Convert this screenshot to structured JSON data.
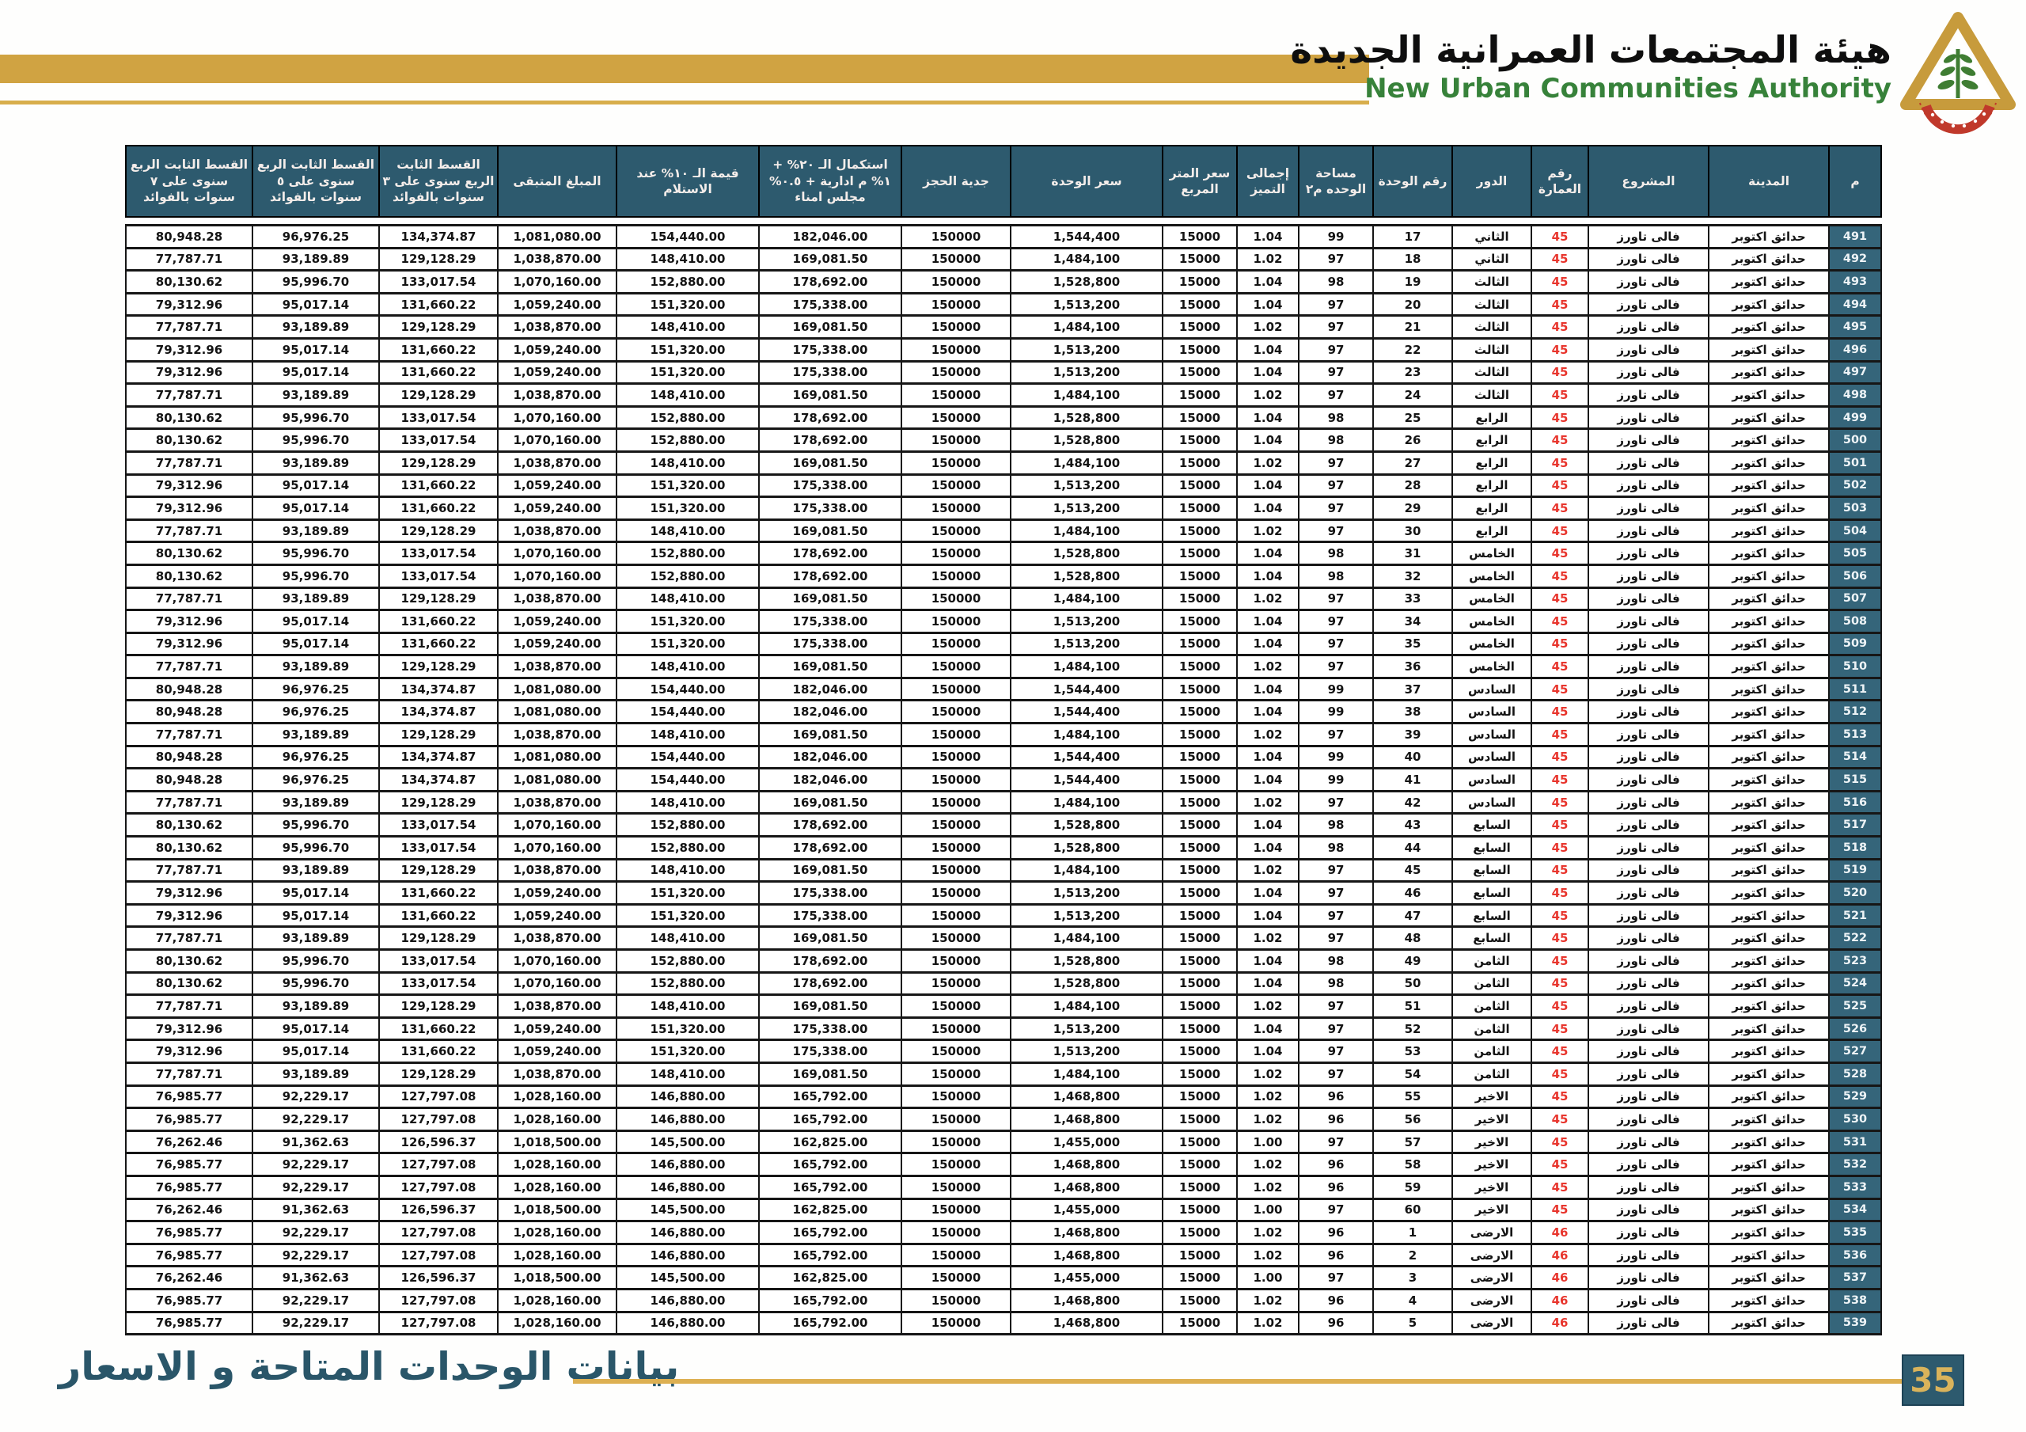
{
  "header": {
    "authority_name_ar": "هيئة المجتمعات العمرانية الجديدة",
    "authority_name_en": "New Urban Communities Authority"
  },
  "footer": {
    "title": "بيانات الوحدات المتاحة و الاسعار",
    "page_number": "35"
  },
  "colors": {
    "accent_gold": "#d0a342",
    "header_teal": "#2d5a6e",
    "building_red": "#e8352d",
    "brand_green": "#37823a",
    "page_badge_text_gold": "#d9b35b"
  },
  "icons": {
    "logo": "nuca-pyramid-logo"
  },
  "table": {
    "columns": [
      {
        "key": "serial",
        "label": "م"
      },
      {
        "key": "city",
        "label": "المدينة"
      },
      {
        "key": "project",
        "label": "المشروع"
      },
      {
        "key": "building_no",
        "label": "رقم العمارة"
      },
      {
        "key": "floor",
        "label": "الدور"
      },
      {
        "key": "unit_no",
        "label": "رقم الوحدة"
      },
      {
        "key": "area",
        "label": "مساحة الوحده م٢"
      },
      {
        "key": "premium_total",
        "label": "إجمالى التميز"
      },
      {
        "key": "price_per_sqm",
        "label": "سعر المتر المربع"
      },
      {
        "key": "unit_price",
        "label": "سعر الوحدة"
      },
      {
        "key": "reservation_deposit",
        "label": "جدية الحجز"
      },
      {
        "key": "completion_20pct",
        "label": "استكمال الـ ٢٠% + ١% م ادارية + ٠.٥% مجلس امناء"
      },
      {
        "key": "delivery_10pct",
        "label": "قيمة الـ ١٠% عند الاستلام"
      },
      {
        "key": "remaining_amount",
        "label": "المبلغ المتبقى"
      },
      {
        "key": "installment_3y",
        "label": "القسط الثابت الربع سنوى على ٣ سنوات بالفوائد"
      },
      {
        "key": "installment_5y",
        "label": "القسط الثابت الربع سنوى على ٥ سنوات بالفوائد"
      },
      {
        "key": "installment_7y",
        "label": "القسط الثابت الربع سنوى على ٧ سنوات بالفوائد"
      }
    ],
    "rows": [
      [
        "491",
        "حدائق اكتوبر",
        "فالى تاورز",
        "45",
        "الثاني",
        "17",
        "99",
        "1.04",
        "15000",
        "1,544,400",
        "150000",
        "182,046.00",
        "154,440.00",
        "1,081,080.00",
        "134,374.87",
        "96,976.25",
        "80,948.28"
      ],
      [
        "492",
        "حدائق اكتوبر",
        "فالى تاورز",
        "45",
        "الثاني",
        "18",
        "97",
        "1.02",
        "15000",
        "1,484,100",
        "150000",
        "169,081.50",
        "148,410.00",
        "1,038,870.00",
        "129,128.29",
        "93,189.89",
        "77,787.71"
      ],
      [
        "493",
        "حدائق اكتوبر",
        "فالى تاورز",
        "45",
        "الثالث",
        "19",
        "98",
        "1.04",
        "15000",
        "1,528,800",
        "150000",
        "178,692.00",
        "152,880.00",
        "1,070,160.00",
        "133,017.54",
        "95,996.70",
        "80,130.62"
      ],
      [
        "494",
        "حدائق اكتوبر",
        "فالى تاورز",
        "45",
        "الثالث",
        "20",
        "97",
        "1.04",
        "15000",
        "1,513,200",
        "150000",
        "175,338.00",
        "151,320.00",
        "1,059,240.00",
        "131,660.22",
        "95,017.14",
        "79,312.96"
      ],
      [
        "495",
        "حدائق اكتوبر",
        "فالى تاورز",
        "45",
        "الثالث",
        "21",
        "97",
        "1.02",
        "15000",
        "1,484,100",
        "150000",
        "169,081.50",
        "148,410.00",
        "1,038,870.00",
        "129,128.29",
        "93,189.89",
        "77,787.71"
      ],
      [
        "496",
        "حدائق اكتوبر",
        "فالى تاورز",
        "45",
        "الثالث",
        "22",
        "97",
        "1.04",
        "15000",
        "1,513,200",
        "150000",
        "175,338.00",
        "151,320.00",
        "1,059,240.00",
        "131,660.22",
        "95,017.14",
        "79,312.96"
      ],
      [
        "497",
        "حدائق اكتوبر",
        "فالى تاورز",
        "45",
        "الثالث",
        "23",
        "97",
        "1.04",
        "15000",
        "1,513,200",
        "150000",
        "175,338.00",
        "151,320.00",
        "1,059,240.00",
        "131,660.22",
        "95,017.14",
        "79,312.96"
      ],
      [
        "498",
        "حدائق اكتوبر",
        "فالى تاورز",
        "45",
        "الثالث",
        "24",
        "97",
        "1.02",
        "15000",
        "1,484,100",
        "150000",
        "169,081.50",
        "148,410.00",
        "1,038,870.00",
        "129,128.29",
        "93,189.89",
        "77,787.71"
      ],
      [
        "499",
        "حدائق اكتوبر",
        "فالى تاورز",
        "45",
        "الرابع",
        "25",
        "98",
        "1.04",
        "15000",
        "1,528,800",
        "150000",
        "178,692.00",
        "152,880.00",
        "1,070,160.00",
        "133,017.54",
        "95,996.70",
        "80,130.62"
      ],
      [
        "500",
        "حدائق اكتوبر",
        "فالى تاورز",
        "45",
        "الرابع",
        "26",
        "98",
        "1.04",
        "15000",
        "1,528,800",
        "150000",
        "178,692.00",
        "152,880.00",
        "1,070,160.00",
        "133,017.54",
        "95,996.70",
        "80,130.62"
      ],
      [
        "501",
        "حدائق اكتوبر",
        "فالى تاورز",
        "45",
        "الرابع",
        "27",
        "97",
        "1.02",
        "15000",
        "1,484,100",
        "150000",
        "169,081.50",
        "148,410.00",
        "1,038,870.00",
        "129,128.29",
        "93,189.89",
        "77,787.71"
      ],
      [
        "502",
        "حدائق اكتوبر",
        "فالى تاورز",
        "45",
        "الرابع",
        "28",
        "97",
        "1.04",
        "15000",
        "1,513,200",
        "150000",
        "175,338.00",
        "151,320.00",
        "1,059,240.00",
        "131,660.22",
        "95,017.14",
        "79,312.96"
      ],
      [
        "503",
        "حدائق اكتوبر",
        "فالى تاورز",
        "45",
        "الرابع",
        "29",
        "97",
        "1.04",
        "15000",
        "1,513,200",
        "150000",
        "175,338.00",
        "151,320.00",
        "1,059,240.00",
        "131,660.22",
        "95,017.14",
        "79,312.96"
      ],
      [
        "504",
        "حدائق اكتوبر",
        "فالى تاورز",
        "45",
        "الرابع",
        "30",
        "97",
        "1.02",
        "15000",
        "1,484,100",
        "150000",
        "169,081.50",
        "148,410.00",
        "1,038,870.00",
        "129,128.29",
        "93,189.89",
        "77,787.71"
      ],
      [
        "505",
        "حدائق اكتوبر",
        "فالى تاورز",
        "45",
        "الخامس",
        "31",
        "98",
        "1.04",
        "15000",
        "1,528,800",
        "150000",
        "178,692.00",
        "152,880.00",
        "1,070,160.00",
        "133,017.54",
        "95,996.70",
        "80,130.62"
      ],
      [
        "506",
        "حدائق اكتوبر",
        "فالى تاورز",
        "45",
        "الخامس",
        "32",
        "98",
        "1.04",
        "15000",
        "1,528,800",
        "150000",
        "178,692.00",
        "152,880.00",
        "1,070,160.00",
        "133,017.54",
        "95,996.70",
        "80,130.62"
      ],
      [
        "507",
        "حدائق اكتوبر",
        "فالى تاورز",
        "45",
        "الخامس",
        "33",
        "97",
        "1.02",
        "15000",
        "1,484,100",
        "150000",
        "169,081.50",
        "148,410.00",
        "1,038,870.00",
        "129,128.29",
        "93,189.89",
        "77,787.71"
      ],
      [
        "508",
        "حدائق اكتوبر",
        "فالى تاورز",
        "45",
        "الخامس",
        "34",
        "97",
        "1.04",
        "15000",
        "1,513,200",
        "150000",
        "175,338.00",
        "151,320.00",
        "1,059,240.00",
        "131,660.22",
        "95,017.14",
        "79,312.96"
      ],
      [
        "509",
        "حدائق اكتوبر",
        "فالى تاورز",
        "45",
        "الخامس",
        "35",
        "97",
        "1.04",
        "15000",
        "1,513,200",
        "150000",
        "175,338.00",
        "151,320.00",
        "1,059,240.00",
        "131,660.22",
        "95,017.14",
        "79,312.96"
      ],
      [
        "510",
        "حدائق اكتوبر",
        "فالى تاورز",
        "45",
        "الخامس",
        "36",
        "97",
        "1.02",
        "15000",
        "1,484,100",
        "150000",
        "169,081.50",
        "148,410.00",
        "1,038,870.00",
        "129,128.29",
        "93,189.89",
        "77,787.71"
      ],
      [
        "511",
        "حدائق اكتوبر",
        "فالى تاورز",
        "45",
        "السادس",
        "37",
        "99",
        "1.04",
        "15000",
        "1,544,400",
        "150000",
        "182,046.00",
        "154,440.00",
        "1,081,080.00",
        "134,374.87",
        "96,976.25",
        "80,948.28"
      ],
      [
        "512",
        "حدائق اكتوبر",
        "فالى تاورز",
        "45",
        "السادس",
        "38",
        "99",
        "1.04",
        "15000",
        "1,544,400",
        "150000",
        "182,046.00",
        "154,440.00",
        "1,081,080.00",
        "134,374.87",
        "96,976.25",
        "80,948.28"
      ],
      [
        "513",
        "حدائق اكتوبر",
        "فالى تاورز",
        "45",
        "السادس",
        "39",
        "97",
        "1.02",
        "15000",
        "1,484,100",
        "150000",
        "169,081.50",
        "148,410.00",
        "1,038,870.00",
        "129,128.29",
        "93,189.89",
        "77,787.71"
      ],
      [
        "514",
        "حدائق اكتوبر",
        "فالى تاورز",
        "45",
        "السادس",
        "40",
        "99",
        "1.04",
        "15000",
        "1,544,400",
        "150000",
        "182,046.00",
        "154,440.00",
        "1,081,080.00",
        "134,374.87",
        "96,976.25",
        "80,948.28"
      ],
      [
        "515",
        "حدائق اكتوبر",
        "فالى تاورز",
        "45",
        "السادس",
        "41",
        "99",
        "1.04",
        "15000",
        "1,544,400",
        "150000",
        "182,046.00",
        "154,440.00",
        "1,081,080.00",
        "134,374.87",
        "96,976.25",
        "80,948.28"
      ],
      [
        "516",
        "حدائق اكتوبر",
        "فالى تاورز",
        "45",
        "السادس",
        "42",
        "97",
        "1.02",
        "15000",
        "1,484,100",
        "150000",
        "169,081.50",
        "148,410.00",
        "1,038,870.00",
        "129,128.29",
        "93,189.89",
        "77,787.71"
      ],
      [
        "517",
        "حدائق اكتوبر",
        "فالى تاورز",
        "45",
        "السابع",
        "43",
        "98",
        "1.04",
        "15000",
        "1,528,800",
        "150000",
        "178,692.00",
        "152,880.00",
        "1,070,160.00",
        "133,017.54",
        "95,996.70",
        "80,130.62"
      ],
      [
        "518",
        "حدائق اكتوبر",
        "فالى تاورز",
        "45",
        "السابع",
        "44",
        "98",
        "1.04",
        "15000",
        "1,528,800",
        "150000",
        "178,692.00",
        "152,880.00",
        "1,070,160.00",
        "133,017.54",
        "95,996.70",
        "80,130.62"
      ],
      [
        "519",
        "حدائق اكتوبر",
        "فالى تاورز",
        "45",
        "السابع",
        "45",
        "97",
        "1.02",
        "15000",
        "1,484,100",
        "150000",
        "169,081.50",
        "148,410.00",
        "1,038,870.00",
        "129,128.29",
        "93,189.89",
        "77,787.71"
      ],
      [
        "520",
        "حدائق اكتوبر",
        "فالى تاورز",
        "45",
        "السابع",
        "46",
        "97",
        "1.04",
        "15000",
        "1,513,200",
        "150000",
        "175,338.00",
        "151,320.00",
        "1,059,240.00",
        "131,660.22",
        "95,017.14",
        "79,312.96"
      ],
      [
        "521",
        "حدائق اكتوبر",
        "فالى تاورز",
        "45",
        "السابع",
        "47",
        "97",
        "1.04",
        "15000",
        "1,513,200",
        "150000",
        "175,338.00",
        "151,320.00",
        "1,059,240.00",
        "131,660.22",
        "95,017.14",
        "79,312.96"
      ],
      [
        "522",
        "حدائق اكتوبر",
        "فالى تاورز",
        "45",
        "السابع",
        "48",
        "97",
        "1.02",
        "15000",
        "1,484,100",
        "150000",
        "169,081.50",
        "148,410.00",
        "1,038,870.00",
        "129,128.29",
        "93,189.89",
        "77,787.71"
      ],
      [
        "523",
        "حدائق اكتوبر",
        "فالى تاورز",
        "45",
        "الثامن",
        "49",
        "98",
        "1.04",
        "15000",
        "1,528,800",
        "150000",
        "178,692.00",
        "152,880.00",
        "1,070,160.00",
        "133,017.54",
        "95,996.70",
        "80,130.62"
      ],
      [
        "524",
        "حدائق اكتوبر",
        "فالى تاورز",
        "45",
        "الثامن",
        "50",
        "98",
        "1.04",
        "15000",
        "1,528,800",
        "150000",
        "178,692.00",
        "152,880.00",
        "1,070,160.00",
        "133,017.54",
        "95,996.70",
        "80,130.62"
      ],
      [
        "525",
        "حدائق اكتوبر",
        "فالى تاورز",
        "45",
        "الثامن",
        "51",
        "97",
        "1.02",
        "15000",
        "1,484,100",
        "150000",
        "169,081.50",
        "148,410.00",
        "1,038,870.00",
        "129,128.29",
        "93,189.89",
        "77,787.71"
      ],
      [
        "526",
        "حدائق اكتوبر",
        "فالى تاورز",
        "45",
        "الثامن",
        "52",
        "97",
        "1.04",
        "15000",
        "1,513,200",
        "150000",
        "175,338.00",
        "151,320.00",
        "1,059,240.00",
        "131,660.22",
        "95,017.14",
        "79,312.96"
      ],
      [
        "527",
        "حدائق اكتوبر",
        "فالى تاورز",
        "45",
        "الثامن",
        "53",
        "97",
        "1.04",
        "15000",
        "1,513,200",
        "150000",
        "175,338.00",
        "151,320.00",
        "1,059,240.00",
        "131,660.22",
        "95,017.14",
        "79,312.96"
      ],
      [
        "528",
        "حدائق اكتوبر",
        "فالى تاورز",
        "45",
        "الثامن",
        "54",
        "97",
        "1.02",
        "15000",
        "1,484,100",
        "150000",
        "169,081.50",
        "148,410.00",
        "1,038,870.00",
        "129,128.29",
        "93,189.89",
        "77,787.71"
      ],
      [
        "529",
        "حدائق اكتوبر",
        "فالى تاورز",
        "45",
        "الاخير",
        "55",
        "96",
        "1.02",
        "15000",
        "1,468,800",
        "150000",
        "165,792.00",
        "146,880.00",
        "1,028,160.00",
        "127,797.08",
        "92,229.17",
        "76,985.77"
      ],
      [
        "530",
        "حدائق اكتوبر",
        "فالى تاورز",
        "45",
        "الاخير",
        "56",
        "96",
        "1.02",
        "15000",
        "1,468,800",
        "150000",
        "165,792.00",
        "146,880.00",
        "1,028,160.00",
        "127,797.08",
        "92,229.17",
        "76,985.77"
      ],
      [
        "531",
        "حدائق اكتوبر",
        "فالى تاورز",
        "45",
        "الاخير",
        "57",
        "97",
        "1.00",
        "15000",
        "1,455,000",
        "150000",
        "162,825.00",
        "145,500.00",
        "1,018,500.00",
        "126,596.37",
        "91,362.63",
        "76,262.46"
      ],
      [
        "532",
        "حدائق اكتوبر",
        "فالى تاورز",
        "45",
        "الاخير",
        "58",
        "96",
        "1.02",
        "15000",
        "1,468,800",
        "150000",
        "165,792.00",
        "146,880.00",
        "1,028,160.00",
        "127,797.08",
        "92,229.17",
        "76,985.77"
      ],
      [
        "533",
        "حدائق اكتوبر",
        "فالى تاورز",
        "45",
        "الاخير",
        "59",
        "96",
        "1.02",
        "15000",
        "1,468,800",
        "150000",
        "165,792.00",
        "146,880.00",
        "1,028,160.00",
        "127,797.08",
        "92,229.17",
        "76,985.77"
      ],
      [
        "534",
        "حدائق اكتوبر",
        "فالى تاورز",
        "45",
        "الاخير",
        "60",
        "97",
        "1.00",
        "15000",
        "1,455,000",
        "150000",
        "162,825.00",
        "145,500.00",
        "1,018,500.00",
        "126,596.37",
        "91,362.63",
        "76,262.46"
      ],
      [
        "535",
        "حدائق اكتوبر",
        "فالى تاورز",
        "46",
        "الارضى",
        "1",
        "96",
        "1.02",
        "15000",
        "1,468,800",
        "150000",
        "165,792.00",
        "146,880.00",
        "1,028,160.00",
        "127,797.08",
        "92,229.17",
        "76,985.77"
      ],
      [
        "536",
        "حدائق اكتوبر",
        "فالى تاورز",
        "46",
        "الارضى",
        "2",
        "96",
        "1.02",
        "15000",
        "1,468,800",
        "150000",
        "165,792.00",
        "146,880.00",
        "1,028,160.00",
        "127,797.08",
        "92,229.17",
        "76,985.77"
      ],
      [
        "537",
        "حدائق اكتوبر",
        "فالى تاورز",
        "46",
        "الارضى",
        "3",
        "97",
        "1.00",
        "15000",
        "1,455,000",
        "150000",
        "162,825.00",
        "145,500.00",
        "1,018,500.00",
        "126,596.37",
        "91,362.63",
        "76,262.46"
      ],
      [
        "538",
        "حدائق اكتوبر",
        "فالى تاورز",
        "46",
        "الارضى",
        "4",
        "96",
        "1.02",
        "15000",
        "1,468,800",
        "150000",
        "165,792.00",
        "146,880.00",
        "1,028,160.00",
        "127,797.08",
        "92,229.17",
        "76,985.77"
      ],
      [
        "539",
        "حدائق اكتوبر",
        "فالى تاورز",
        "46",
        "الارضى",
        "5",
        "96",
        "1.02",
        "15000",
        "1,468,800",
        "150000",
        "165,792.00",
        "146,880.00",
        "1,028,160.00",
        "127,797.08",
        "92,229.17",
        "76,985.77"
      ]
    ]
  }
}
